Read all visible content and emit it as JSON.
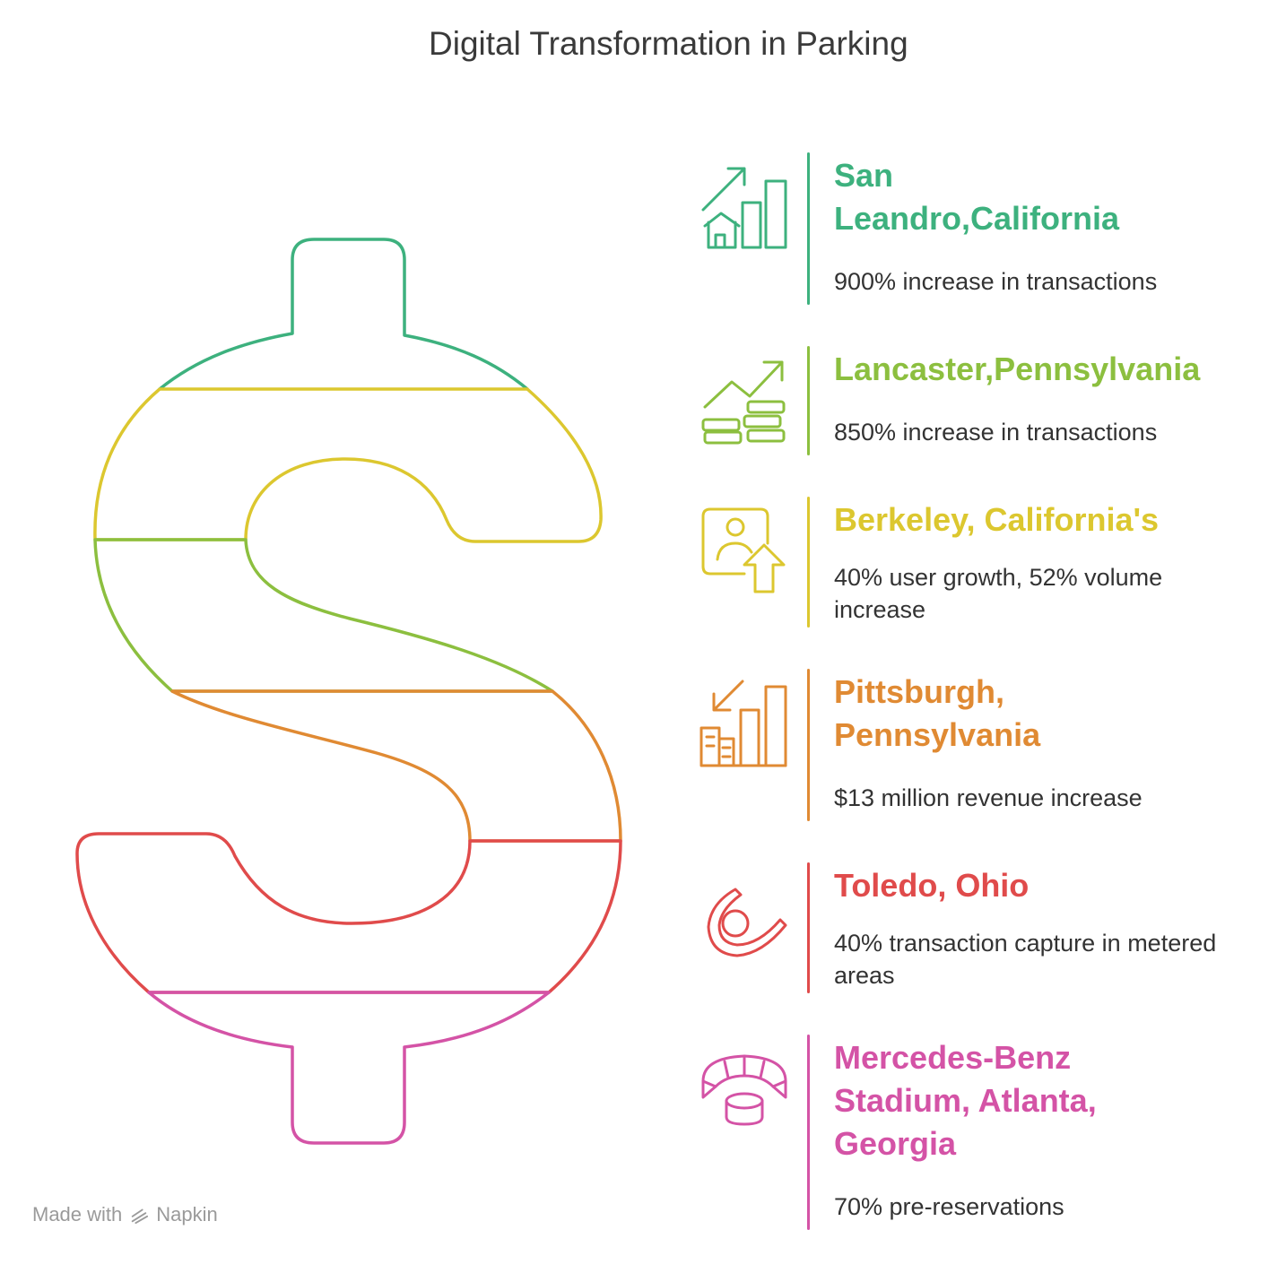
{
  "title": "Digital Transformation in Parking",
  "colors": {
    "green": "#3DB17E",
    "lime": "#8CBF3F",
    "yellow": "#DCC72F",
    "orange": "#E08A33",
    "red": "#E04B4B",
    "pink": "#D453A6"
  },
  "items": [
    {
      "heading": "San Leandro,California",
      "desc": "900% increase in transactions",
      "color": "#3DB17E",
      "icon": "growth-chart-house-icon"
    },
    {
      "heading": "Lancaster,Pennsylvania",
      "desc": "850% increase in transactions",
      "color": "#8CBF3F",
      "icon": "coins-growth-icon"
    },
    {
      "heading": "Berkeley, California's",
      "desc": "40% user growth, 52% volume increase",
      "color": "#DCC72F",
      "icon": "user-growth-icon"
    },
    {
      "heading": "Pittsburgh, Pennsylvania",
      "desc": "$13 million revenue increase",
      "color": "#E08A33",
      "icon": "revenue-chart-icon"
    },
    {
      "heading": "Toledo, Ohio",
      "desc": "40% transaction capture in metered areas",
      "color": "#E04B4B",
      "icon": "capture-swirl-icon"
    },
    {
      "heading": "Mercedes-Benz Stadium, Atlanta, Georgia",
      "desc": "70% pre-reservations",
      "color": "#D453A6",
      "icon": "stadium-icon"
    }
  ],
  "footer": {
    "made_with": "Made with",
    "brand": "Napkin"
  }
}
